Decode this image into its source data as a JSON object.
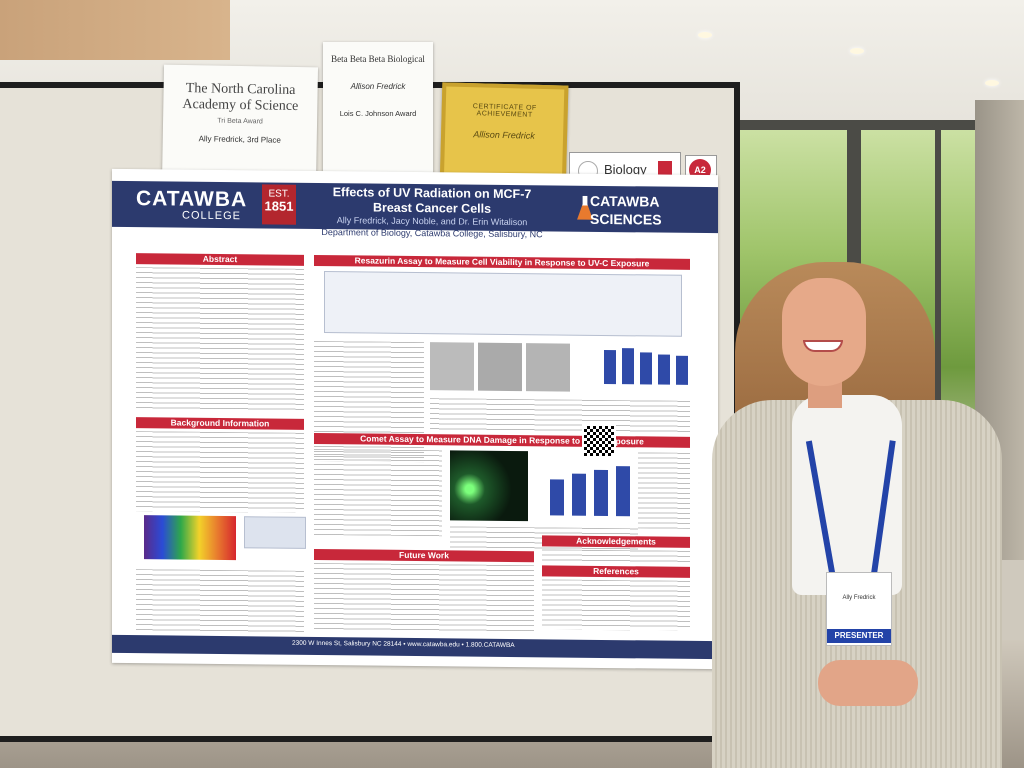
{
  "certificates": {
    "nc_academy": {
      "title": "The North Carolina Academy of Science",
      "subtitle": "Tri Beta Award",
      "recipient": "Ally Fredrick, 3rd Place"
    },
    "beta_beta_beta": {
      "title": "Beta Beta Beta Biological",
      "recipient": "Allison Fredrick",
      "award": "Lois C. Johnson Award"
    },
    "achievement": {
      "title": "CERTIFICATE OF ACHIEVEMENT",
      "recipient": "Allison Fredrick"
    }
  },
  "category_label": "Biology",
  "booth_number": "A2",
  "poster": {
    "college_name": "CATAWBA",
    "college_sub": "COLLEGE",
    "est_label": "EST.",
    "est_year": "1851",
    "title": "Effects of UV Radiation on MCF-7 Breast Cancer Cells",
    "authors": "Ally Fredrick, Jacy Noble, and Dr. Erin Witalison",
    "department": "Department of Biology, Catawba College, Salisbury, NC",
    "sciences_line1": "CATAWBA",
    "sciences_line2": "SCIENCES",
    "sections": {
      "abstract": "Abstract",
      "background": "Background Information",
      "resazurin": "Resazurin Assay to Measure Cell Viability in Response to UV-C Exposure",
      "comet": "Comet Assay to Measure DNA Damage in Response to UV-C Exposure",
      "future_work": "Future Work",
      "acknowledgements": "Acknowledgements",
      "references": "References"
    },
    "footer_address": "2300 W Innes St, Salisbury NC 28144 • www.catawba.edu • 1.800.CATAWBA"
  },
  "badge": {
    "name": "Ally Fredrick",
    "role": "PRESENTER"
  },
  "colors": {
    "poster_navy": "#2c3a6e",
    "poster_red": "#c8283a",
    "lanyard_blue": "#2343a8"
  }
}
